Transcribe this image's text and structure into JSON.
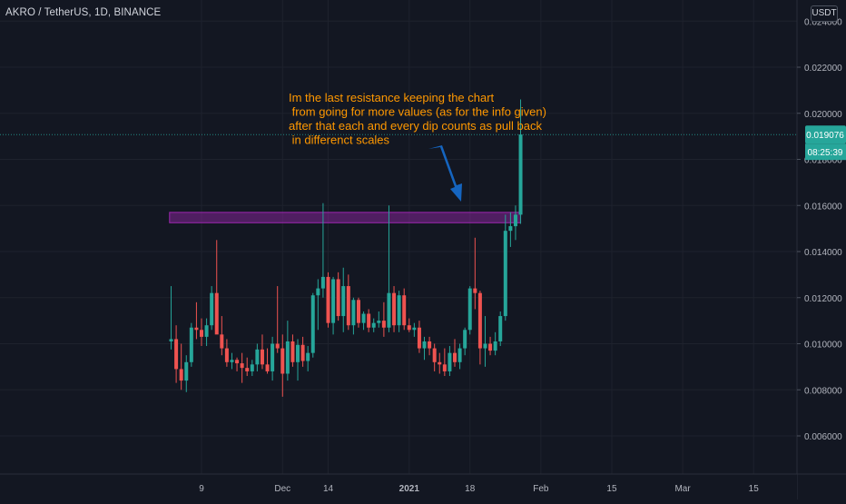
{
  "header": {
    "symbol": "AKRO / TetherUS, 1D, BINANCE",
    "currency": "USDT"
  },
  "chart_data": {
    "type": "candlestick",
    "symbol": "AKRO / TetherUS",
    "interval": "1D",
    "exchange": "BINANCE",
    "y_ticks": [
      "0.006000",
      "0.008000",
      "0.010000",
      "0.012000",
      "0.014000",
      "0.016000",
      "0.018000",
      "0.020000",
      "0.022000"
    ],
    "y_top_partial": "0.024000",
    "ylim": [
      0.0043,
      0.0245
    ],
    "x_ticks": [
      {
        "day": 0,
        "label": "9"
      },
      {
        "day": 16,
        "label": "Dec"
      },
      {
        "day": 25,
        "label": "14"
      },
      {
        "day": 41,
        "label": "2021"
      },
      {
        "day": 53,
        "label": "18"
      },
      {
        "day": 67,
        "label": "Feb"
      },
      {
        "day": 81,
        "label": "15"
      },
      {
        "day": 95,
        "label": "Mar"
      },
      {
        "day": 109,
        "label": "15"
      }
    ],
    "last_price": "0.019076",
    "countdown": "08:25:39",
    "resistance_zone": {
      "low": 0.01525,
      "high": 0.0157,
      "from_day": -9,
      "to_day": 63
    },
    "annotation": {
      "lines": [
        "Im the last resistance keeping the chart",
        " from going for more values (as for the info given)",
        "after that each and every dip counts as pull back",
        " in differenct scales"
      ]
    },
    "candles": [
      {
        "o": 0.0101,
        "h": 0.0125,
        "l": 0.00975,
        "c": 0.0102
      },
      {
        "o": 0.0102,
        "h": 0.0108,
        "l": 0.0083,
        "c": 0.0089
      },
      {
        "o": 0.0089,
        "h": 0.01,
        "l": 0.008,
        "c": 0.0084
      },
      {
        "o": 0.0084,
        "h": 0.0095,
        "l": 0.0079,
        "c": 0.0092
      },
      {
        "o": 0.0092,
        "h": 0.0109,
        "l": 0.009,
        "c": 0.0107
      },
      {
        "o": 0.0107,
        "h": 0.0118,
        "l": 0.0102,
        "c": 0.0106
      },
      {
        "o": 0.0106,
        "h": 0.0111,
        "l": 0.0099,
        "c": 0.0103
      },
      {
        "o": 0.0103,
        "h": 0.0111,
        "l": 0.0099,
        "c": 0.0108
      },
      {
        "o": 0.0108,
        "h": 0.0125,
        "l": 0.0106,
        "c": 0.0122
      },
      {
        "o": 0.0122,
        "h": 0.0145,
        "l": 0.0106,
        "c": 0.0104
      },
      {
        "o": 0.0104,
        "h": 0.0112,
        "l": 0.0095,
        "c": 0.0098
      },
      {
        "o": 0.0098,
        "h": 0.0102,
        "l": 0.009,
        "c": 0.0092
      },
      {
        "o": 0.0092,
        "h": 0.0096,
        "l": 0.0089,
        "c": 0.0093
      },
      {
        "o": 0.0093,
        "h": 0.0094,
        "l": 0.0088,
        "c": 0.00915
      },
      {
        "o": 0.00915,
        "h": 0.0096,
        "l": 0.0083,
        "c": 0.00895
      },
      {
        "o": 0.00895,
        "h": 0.0094,
        "l": 0.0086,
        "c": 0.0088
      },
      {
        "o": 0.0088,
        "h": 0.0093,
        "l": 0.0086,
        "c": 0.0091
      },
      {
        "o": 0.0091,
        "h": 0.01,
        "l": 0.0088,
        "c": 0.00975
      },
      {
        "o": 0.00975,
        "h": 0.0104,
        "l": 0.0089,
        "c": 0.0091
      },
      {
        "o": 0.0091,
        "h": 0.0098,
        "l": 0.0087,
        "c": 0.0088
      },
      {
        "o": 0.0088,
        "h": 0.0103,
        "l": 0.0084,
        "c": 0.01
      },
      {
        "o": 0.01,
        "h": 0.0125,
        "l": 0.0096,
        "c": 0.0098
      },
      {
        "o": 0.0098,
        "h": 0.0104,
        "l": 0.0077,
        "c": 0.0087
      },
      {
        "o": 0.0087,
        "h": 0.011,
        "l": 0.0084,
        "c": 0.0101
      },
      {
        "o": 0.0101,
        "h": 0.0104,
        "l": 0.009,
        "c": 0.0092
      },
      {
        "o": 0.0092,
        "h": 0.0102,
        "l": 0.0084,
        "c": 0.00995
      },
      {
        "o": 0.00995,
        "h": 0.0103,
        "l": 0.009,
        "c": 0.00925
      },
      {
        "o": 0.00925,
        "h": 0.0099,
        "l": 0.0088,
        "c": 0.0096
      },
      {
        "o": 0.0096,
        "h": 0.0122,
        "l": 0.0094,
        "c": 0.0121
      },
      {
        "o": 0.0121,
        "h": 0.0128,
        "l": 0.0106,
        "c": 0.0124
      },
      {
        "o": 0.0124,
        "h": 0.0161,
        "l": 0.012,
        "c": 0.0129
      },
      {
        "o": 0.0129,
        "h": 0.0131,
        "l": 0.0107,
        "c": 0.0109
      },
      {
        "o": 0.0109,
        "h": 0.0129,
        "l": 0.0104,
        "c": 0.0128
      },
      {
        "o": 0.0128,
        "h": 0.0131,
        "l": 0.011,
        "c": 0.0112
      },
      {
        "o": 0.0112,
        "h": 0.0133,
        "l": 0.0105,
        "c": 0.0125
      },
      {
        "o": 0.0125,
        "h": 0.013,
        "l": 0.0106,
        "c": 0.0108
      },
      {
        "o": 0.0108,
        "h": 0.012,
        "l": 0.0104,
        "c": 0.0119
      },
      {
        "o": 0.0119,
        "h": 0.012,
        "l": 0.0107,
        "c": 0.0109
      },
      {
        "o": 0.0109,
        "h": 0.0114,
        "l": 0.0106,
        "c": 0.0113
      },
      {
        "o": 0.0113,
        "h": 0.0115,
        "l": 0.0105,
        "c": 0.0107
      },
      {
        "o": 0.0107,
        "h": 0.0111,
        "l": 0.0105,
        "c": 0.0109
      },
      {
        "o": 0.0109,
        "h": 0.0114,
        "l": 0.0107,
        "c": 0.011
      },
      {
        "o": 0.011,
        "h": 0.0118,
        "l": 0.0103,
        "c": 0.0107
      },
      {
        "o": 0.0107,
        "h": 0.016,
        "l": 0.0105,
        "c": 0.0122
      },
      {
        "o": 0.0122,
        "h": 0.0125,
        "l": 0.0105,
        "c": 0.0108
      },
      {
        "o": 0.0108,
        "h": 0.0123,
        "l": 0.0105,
        "c": 0.0121
      },
      {
        "o": 0.0121,
        "h": 0.0124,
        "l": 0.0106,
        "c": 0.0108
      },
      {
        "o": 0.0108,
        "h": 0.0111,
        "l": 0.0105,
        "c": 0.0106
      },
      {
        "o": 0.0106,
        "h": 0.0109,
        "l": 0.0103,
        "c": 0.0107
      },
      {
        "o": 0.0107,
        "h": 0.011,
        "l": 0.0096,
        "c": 0.0098
      },
      {
        "o": 0.0098,
        "h": 0.0103,
        "l": 0.0093,
        "c": 0.0101
      },
      {
        "o": 0.0101,
        "h": 0.0103,
        "l": 0.0095,
        "c": 0.0098
      },
      {
        "o": 0.0098,
        "h": 0.01,
        "l": 0.0088,
        "c": 0.0092
      },
      {
        "o": 0.0092,
        "h": 0.0096,
        "l": 0.0087,
        "c": 0.0091
      },
      {
        "o": 0.0091,
        "h": 0.0098,
        "l": 0.0086,
        "c": 0.0088
      },
      {
        "o": 0.0088,
        "h": 0.0099,
        "l": 0.0086,
        "c": 0.0096
      },
      {
        "o": 0.0096,
        "h": 0.0102,
        "l": 0.009,
        "c": 0.0092
      },
      {
        "o": 0.0092,
        "h": 0.01,
        "l": 0.0089,
        "c": 0.0098
      },
      {
        "o": 0.0098,
        "h": 0.0107,
        "l": 0.0095,
        "c": 0.0106
      },
      {
        "o": 0.0106,
        "h": 0.0125,
        "l": 0.0104,
        "c": 0.0124
      },
      {
        "o": 0.0124,
        "h": 0.0146,
        "l": 0.0115,
        "c": 0.0122
      },
      {
        "o": 0.0122,
        "h": 0.0123,
        "l": 0.0091,
        "c": 0.0098
      },
      {
        "o": 0.0098,
        "h": 0.0112,
        "l": 0.009,
        "c": 0.01
      },
      {
        "o": 0.01,
        "h": 0.0103,
        "l": 0.0095,
        "c": 0.0097
      },
      {
        "o": 0.0097,
        "h": 0.0105,
        "l": 0.0095,
        "c": 0.0101
      },
      {
        "o": 0.0101,
        "h": 0.0114,
        "l": 0.0099,
        "c": 0.0112
      },
      {
        "o": 0.0112,
        "h": 0.0156,
        "l": 0.011,
        "c": 0.0149
      },
      {
        "o": 0.0149,
        "h": 0.0157,
        "l": 0.0142,
        "c": 0.0151
      },
      {
        "o": 0.0151,
        "h": 0.016,
        "l": 0.0145,
        "c": 0.0156
      },
      {
        "o": 0.0156,
        "h": 0.0206,
        "l": 0.0152,
        "c": 0.01908
      }
    ]
  }
}
